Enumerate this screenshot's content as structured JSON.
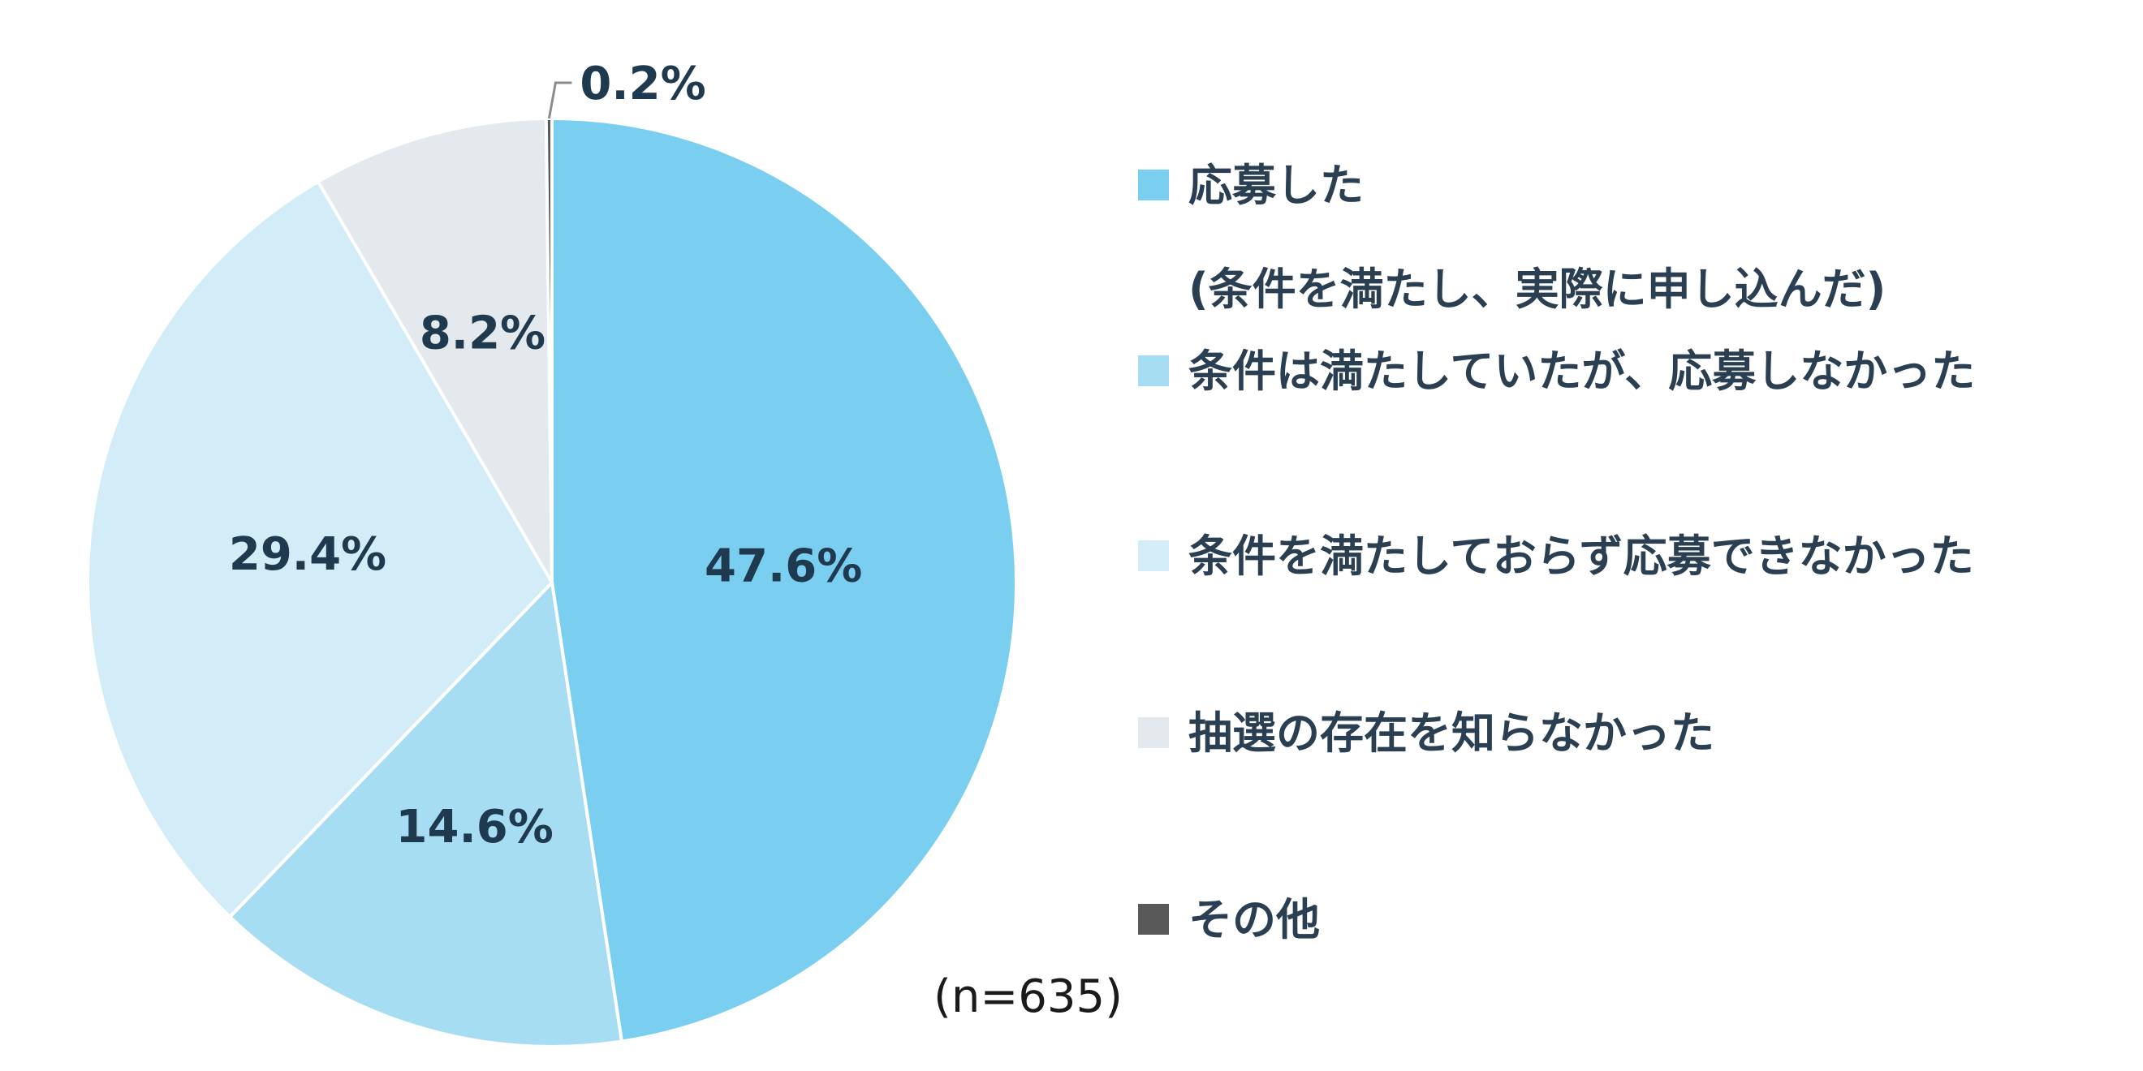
{
  "chart_data": {
    "type": "pie",
    "categories": [
      "応募した",
      "条件は満たしていたが、応募しなかった",
      "条件を満たしておらず応募できなかった",
      "抽選の存在を知らなかった",
      "その他"
    ],
    "legend_sublabels": [
      "(条件を満たし、実際に申し込んだ)",
      "",
      "",
      "",
      ""
    ],
    "values": [
      47.6,
      14.6,
      29.4,
      8.2,
      0.2
    ],
    "value_labels": [
      "47.6%",
      "14.6%",
      "29.4%",
      "8.2%",
      "0.2%"
    ],
    "colors": [
      "#7ACEEF",
      "#A6DDF2",
      "#D3EDF8",
      "#E3E9EC",
      "#595959"
    ],
    "legend_placement": "right",
    "note": "(n=635)"
  }
}
